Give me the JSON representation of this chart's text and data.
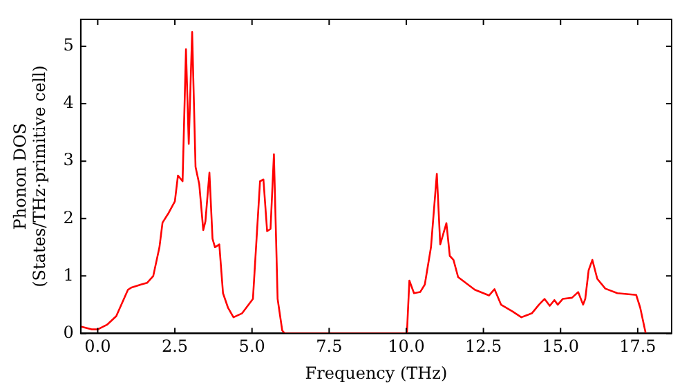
{
  "chart_data": {
    "type": "line",
    "xlabel": "Frequency (THz)",
    "ylabel": "Phonon DOS\n(States/THz·primitive cell)",
    "xlim": [
      -0.55,
      18.6
    ],
    "ylim": [
      0,
      5.47
    ],
    "xticks": [
      {
        "value": 0,
        "label": "0.0"
      },
      {
        "value": 2.5,
        "label": "2.5"
      },
      {
        "value": 5,
        "label": "5.0"
      },
      {
        "value": 7.5,
        "label": "7.5"
      },
      {
        "value": 10,
        "label": "10.0"
      },
      {
        "value": 12.5,
        "label": "12.5"
      },
      {
        "value": 15,
        "label": "15.0"
      },
      {
        "value": 17.5,
        "label": "17.5"
      }
    ],
    "yticks": [
      0,
      1,
      2,
      3,
      4,
      5
    ],
    "grid": false,
    "legend": false,
    "marker": "none",
    "line_style": "solid",
    "series": [
      {
        "color": "#ff0000",
        "x": [
          -0.55,
          -0.2,
          0.0,
          0.3,
          0.6,
          0.98,
          1.1,
          1.4,
          1.6,
          1.8,
          2.0,
          2.1,
          2.3,
          2.5,
          2.6,
          2.75,
          2.86,
          2.95,
          3.06,
          3.17,
          3.29,
          3.42,
          3.49,
          3.62,
          3.72,
          3.8,
          3.94,
          4.06,
          4.22,
          4.4,
          4.68,
          5.03,
          5.26,
          5.37,
          5.49,
          5.6,
          5.71,
          5.83,
          5.98,
          6.06,
          10.02,
          10.1,
          10.25,
          10.45,
          10.6,
          10.8,
          10.99,
          11.1,
          11.3,
          11.41,
          11.53,
          11.68,
          12.22,
          12.68,
          12.86,
          13.07,
          13.45,
          13.73,
          14.07,
          14.3,
          14.48,
          14.65,
          14.8,
          14.91,
          15.07,
          15.37,
          15.57,
          15.73,
          15.8,
          15.91,
          16.03,
          16.19,
          16.45,
          16.84,
          17.45,
          17.58,
          17.76
        ],
        "values": [
          0.12,
          0.07,
          0.07,
          0.15,
          0.3,
          0.76,
          0.8,
          0.85,
          0.88,
          1.0,
          1.5,
          1.93,
          2.1,
          2.3,
          2.75,
          2.65,
          4.95,
          3.3,
          5.25,
          2.9,
          2.6,
          1.8,
          1.95,
          2.8,
          1.65,
          1.5,
          1.55,
          0.7,
          0.45,
          0.28,
          0.35,
          0.6,
          2.65,
          2.68,
          1.78,
          1.82,
          3.12,
          0.6,
          0.05,
          0,
          0,
          0.92,
          0.7,
          0.72,
          0.85,
          1.5,
          2.78,
          1.55,
          1.92,
          1.35,
          1.28,
          0.98,
          0.76,
          0.66,
          0.77,
          0.5,
          0.38,
          0.28,
          0.35,
          0.5,
          0.6,
          0.48,
          0.58,
          0.5,
          0.6,
          0.62,
          0.72,
          0.5,
          0.6,
          1.1,
          1.28,
          0.95,
          0.78,
          0.7,
          0.67,
          0.45,
          0
        ]
      }
    ]
  }
}
